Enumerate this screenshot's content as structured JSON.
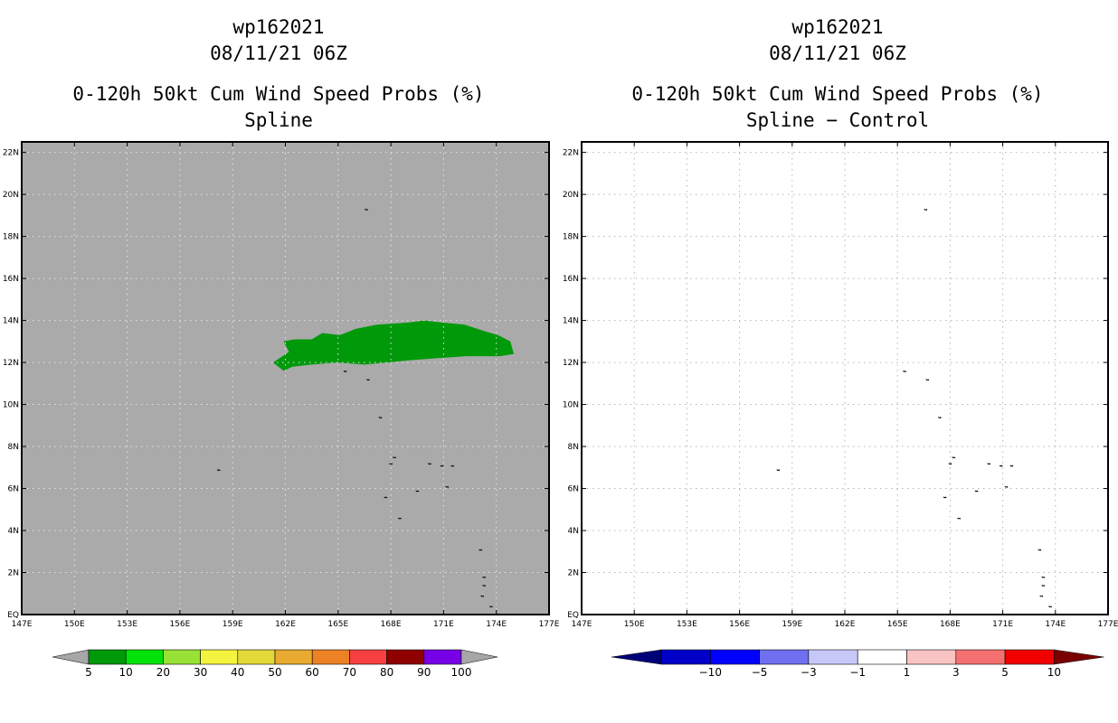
{
  "left_panel": {
    "storm_id": "wp162021",
    "date": "08/11/21 06Z",
    "product": "0-120h 50kt Cum Wind Speed Probs (%)",
    "subtitle": "Spline"
  },
  "right_panel": {
    "storm_id": "wp162021",
    "date": "08/11/21 06Z",
    "product": "0-120h 50kt Cum Wind Speed Probs (%)",
    "subtitle": "Spline − Control"
  },
  "chart_data": [
    {
      "type": "heatmap",
      "panel": "Spline",
      "x_ticks": [
        "147E",
        "150E",
        "153E",
        "156E",
        "159E",
        "162E",
        "165E",
        "168E",
        "171E",
        "174E",
        "177E"
      ],
      "y_ticks": [
        "EQ",
        "2N",
        "4N",
        "6N",
        "8N",
        "10N",
        "12N",
        "14N",
        "16N",
        "18N",
        "20N",
        "22N"
      ],
      "xlim": [
        147,
        177
      ],
      "ylim": [
        0,
        22.5
      ],
      "grid": true,
      "background_color": "#aaaaaa",
      "probability_region": {
        "value_bin": "5-10",
        "color": "#00990a",
        "outline_lonlat": [
          [
            161.3,
            12.0
          ],
          [
            161.9,
            11.6
          ],
          [
            162.4,
            11.8
          ],
          [
            163.5,
            11.9
          ],
          [
            164.9,
            12.0
          ],
          [
            166.5,
            11.9
          ],
          [
            167.8,
            12.0
          ],
          [
            169.0,
            12.1
          ],
          [
            170.6,
            12.2
          ],
          [
            172.3,
            12.3
          ],
          [
            174.2,
            12.3
          ],
          [
            175.0,
            12.4
          ],
          [
            174.8,
            13.0
          ],
          [
            174.1,
            13.3
          ],
          [
            173.3,
            13.5
          ],
          [
            172.2,
            13.8
          ],
          [
            170.9,
            13.9
          ],
          [
            169.9,
            14.0
          ],
          [
            169.0,
            13.9
          ],
          [
            167.2,
            13.8
          ],
          [
            166.0,
            13.6
          ],
          [
            165.1,
            13.3
          ],
          [
            164.1,
            13.4
          ],
          [
            163.5,
            13.1
          ],
          [
            162.5,
            13.1
          ],
          [
            161.9,
            13.0
          ],
          [
            162.2,
            12.5
          ]
        ]
      },
      "colorbar": {
        "labels": [
          "5",
          "10",
          "20",
          "30",
          "40",
          "50",
          "60",
          "70",
          "80",
          "90",
          "100"
        ],
        "colors": [
          "#00990a",
          "#00e30a",
          "#98e236",
          "#f4f440",
          "#e5d93a",
          "#e8aa30",
          "#ed8126",
          "#f84040",
          "#8f0000",
          "#7800e6"
        ],
        "end_color": "#a7a7a7"
      }
    },
    {
      "type": "heatmap",
      "panel": "Spline − Control",
      "x_ticks": [
        "147E",
        "150E",
        "153E",
        "156E",
        "159E",
        "162E",
        "165E",
        "168E",
        "171E",
        "174E",
        "177E"
      ],
      "y_ticks": [
        "EQ",
        "2N",
        "4N",
        "6N",
        "8N",
        "10N",
        "12N",
        "14N",
        "16N",
        "18N",
        "20N",
        "22N"
      ],
      "xlim": [
        147,
        177
      ],
      "ylim": [
        0,
        22.5
      ],
      "grid": true,
      "background_color": "#ffffff",
      "colorbar": {
        "labels": [
          "−10",
          "−5",
          "−3",
          "−1",
          "1",
          "3",
          "5",
          "10"
        ],
        "colors": [
          "#0000c8",
          "#0000ff",
          "#6f6ff0",
          "#c8c8f8",
          "#ffffff",
          "#f8c3c3",
          "#f47070",
          "#f20000"
        ],
        "left_end_color": "#00007a",
        "right_end_color": "#7a0000"
      }
    }
  ],
  "islands_lonlat": [
    [
      166.6,
      19.3
    ],
    [
      165.4,
      11.6
    ],
    [
      166.7,
      11.2
    ],
    [
      167.4,
      9.4
    ],
    [
      158.2,
      6.9
    ],
    [
      168.0,
      7.2
    ],
    [
      168.2,
      7.5
    ],
    [
      170.2,
      7.2
    ],
    [
      170.9,
      7.1
    ],
    [
      171.5,
      7.1
    ],
    [
      169.5,
      5.9
    ],
    [
      171.2,
      6.1
    ],
    [
      167.7,
      5.6
    ],
    [
      168.5,
      4.6
    ],
    [
      173.1,
      3.1
    ],
    [
      173.3,
      1.8
    ],
    [
      173.3,
      1.4
    ],
    [
      173.2,
      0.9
    ],
    [
      173.7,
      0.4
    ]
  ]
}
